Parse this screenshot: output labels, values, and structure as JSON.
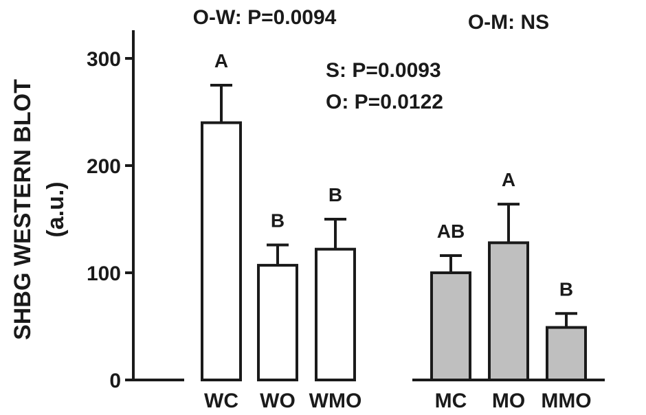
{
  "chart_data": {
    "type": "bar",
    "ylabel_line1": "SHBG WESTERN BLOT",
    "ylabel_line2": "(a.u.)",
    "ylim": [
      0,
      300
    ],
    "yticks": [
      0,
      100,
      200,
      300
    ],
    "groups": [
      {
        "label": "O-W: P=0.0094",
        "categories": [
          "WC",
          "WO",
          "WMO"
        ],
        "fill": "#ffffff"
      },
      {
        "label": "O-M: NS",
        "categories": [
          "MC",
          "MO",
          "MMO"
        ],
        "fill": "#bfbfbf"
      }
    ],
    "bars": [
      {
        "category": "WC",
        "value": 240,
        "error": 35,
        "letter": "A"
      },
      {
        "category": "WO",
        "value": 107,
        "error": 19,
        "letter": "B"
      },
      {
        "category": "WMO",
        "value": 122,
        "error": 28,
        "letter": "B"
      },
      {
        "category": "MC",
        "value": 100,
        "error": 16,
        "letter": "AB"
      },
      {
        "category": "MO",
        "value": 128,
        "error": 36,
        "letter": "A"
      },
      {
        "category": "MMO",
        "value": 49,
        "error": 13,
        "letter": "B"
      }
    ],
    "annotations": [
      "S: P=0.0093",
      "O: P=0.0122"
    ]
  }
}
